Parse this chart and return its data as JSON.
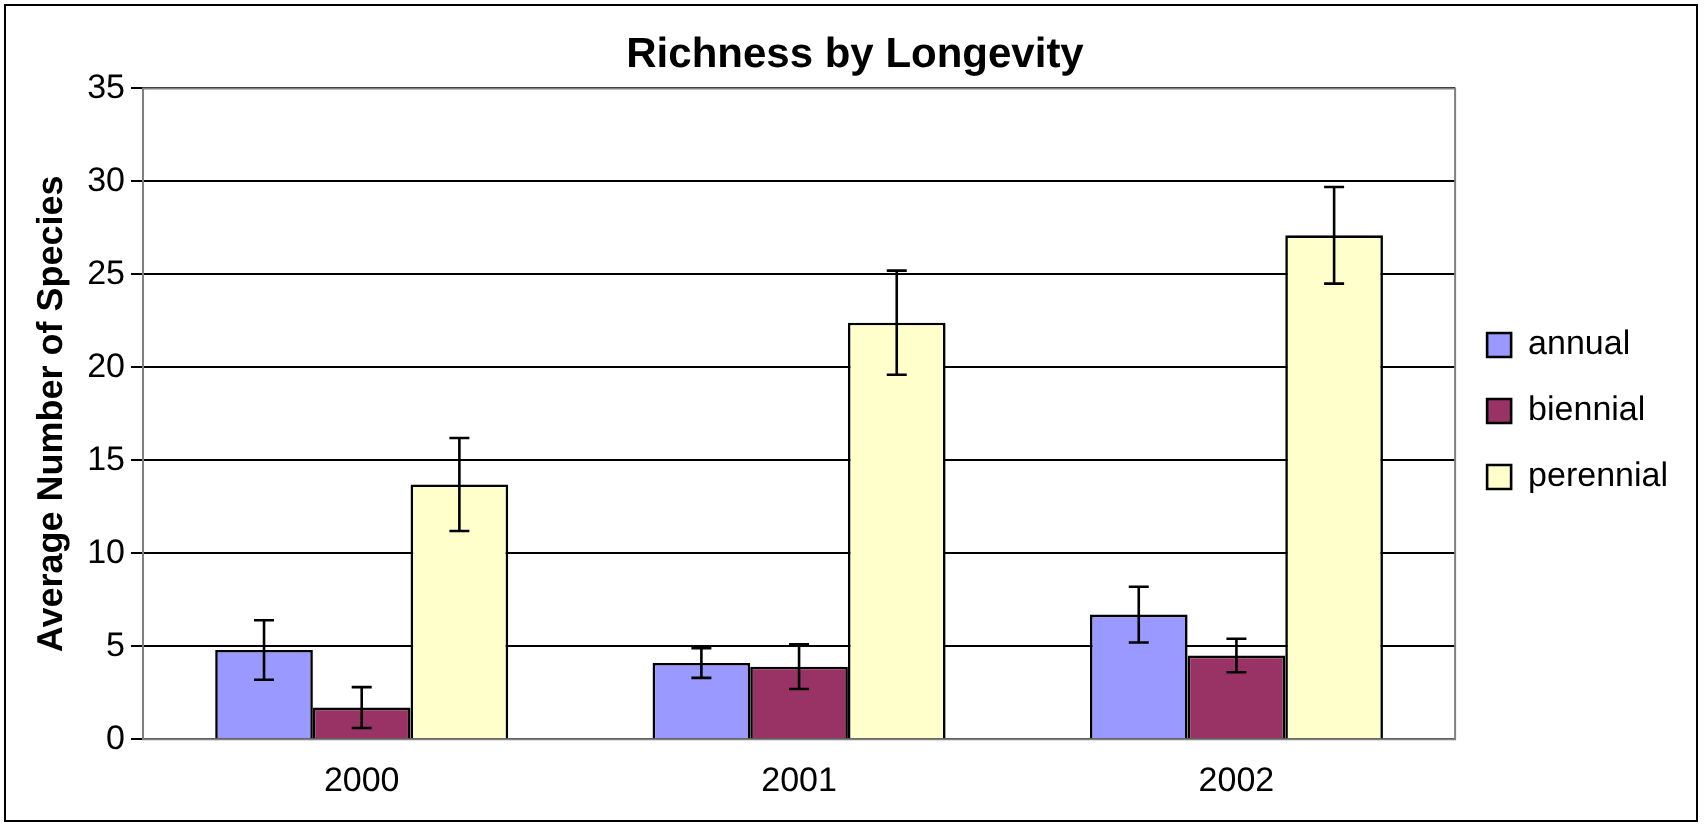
{
  "chart_data": {
    "type": "bar",
    "title": "Richness by Longevity",
    "ylabel": "Average Number of Species",
    "categories": [
      "2000",
      "2001",
      "2002"
    ],
    "series": [
      {
        "name": "annual",
        "color": "#9999ff",
        "values": [
          4.8,
          4.1,
          6.7
        ],
        "errors": [
          1.6,
          0.8,
          1.5
        ]
      },
      {
        "name": "biennial",
        "color": "#993366",
        "values": [
          1.7,
          3.9,
          4.5
        ],
        "errors": [
          1.1,
          1.2,
          0.9
        ]
      },
      {
        "name": "perennial",
        "color": "#ffffcc",
        "values": [
          13.7,
          22.4,
          27.1
        ],
        "errors": [
          2.5,
          2.8,
          2.6
        ]
      }
    ],
    "ylim": [
      0,
      35
    ],
    "yticks": [
      0,
      5,
      10,
      15,
      20,
      25,
      30,
      35
    ],
    "grid": "y",
    "legend": "right"
  }
}
